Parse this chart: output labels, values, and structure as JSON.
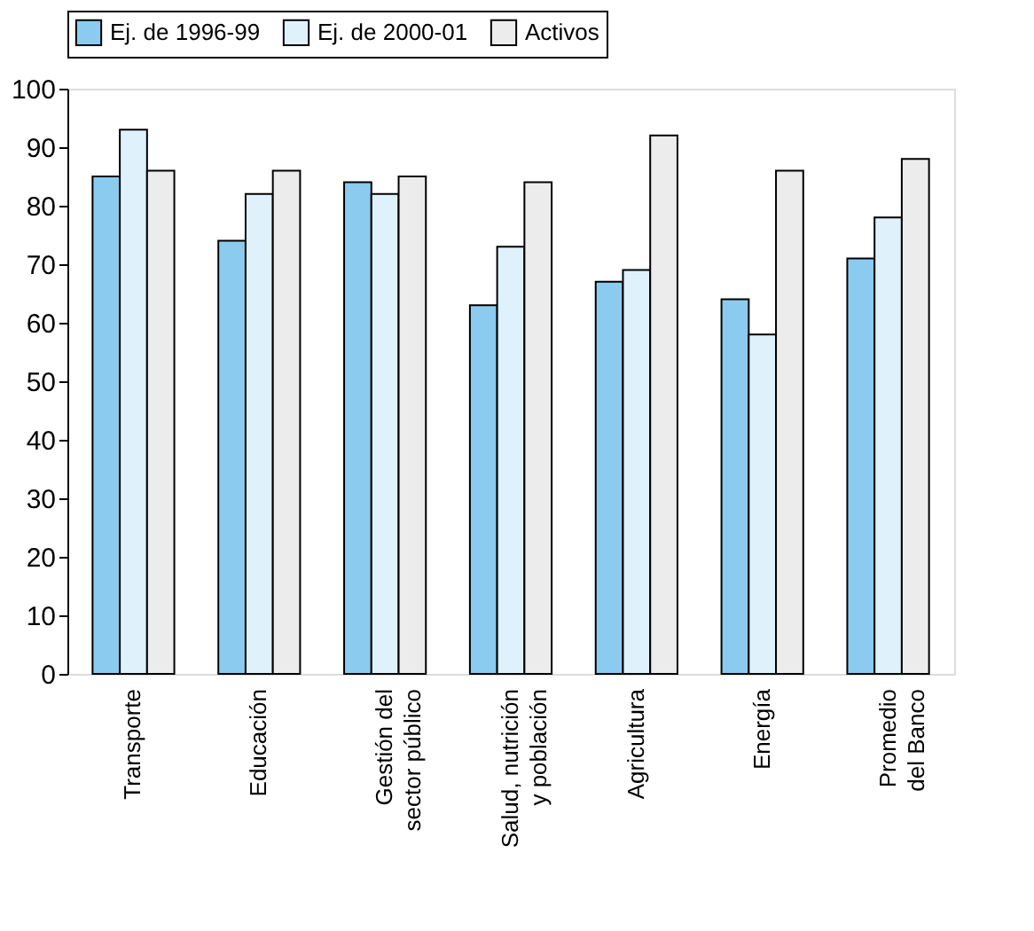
{
  "chart_data": {
    "type": "bar",
    "categories": [
      "Transporte",
      "Educación",
      "Gestión del\nsector público",
      "Salud, nutrición\ny población",
      "Agricultura",
      "Energía",
      "Promedio\ndel Banco"
    ],
    "series": [
      {
        "name": "Ej. de 1996-99",
        "color": "#8ccbf0",
        "values": [
          85,
          74,
          84,
          63,
          67,
          64,
          71
        ]
      },
      {
        "name": "Ej. de 2000-01",
        "color": "#dff1fb",
        "values": [
          93,
          82,
          82,
          73,
          69,
          58,
          78
        ]
      },
      {
        "name": "Activos",
        "color": "#ececec",
        "values": [
          86,
          86,
          85,
          84,
          92,
          86,
          88
        ]
      }
    ],
    "ylim": [
      0,
      100
    ],
    "yticks": [
      0,
      10,
      20,
      30,
      40,
      50,
      60,
      70,
      80,
      90,
      100
    ],
    "grid": false,
    "legend": "top"
  }
}
